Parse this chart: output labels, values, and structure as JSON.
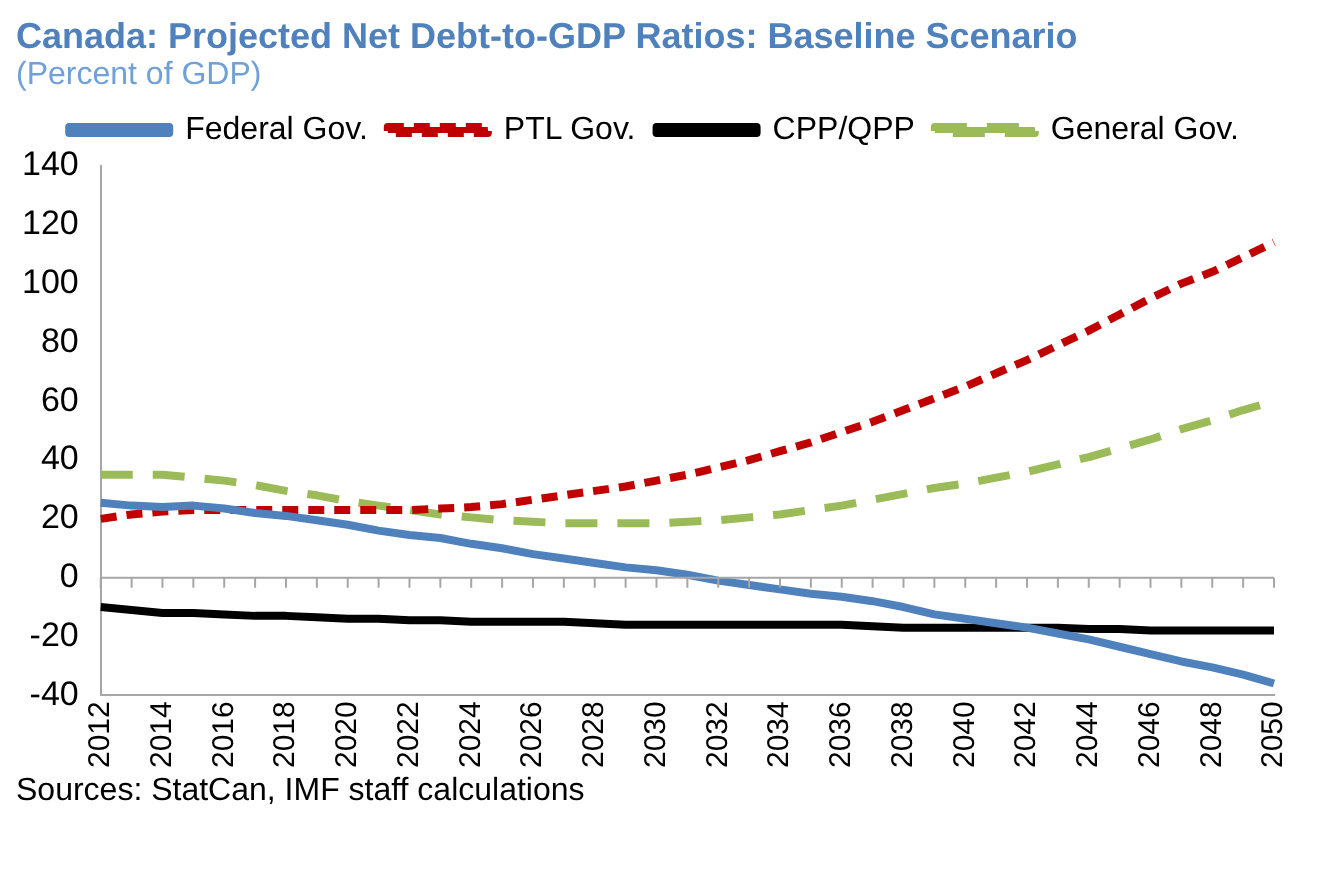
{
  "chart_data": {
    "type": "line",
    "title": "Canada: Projected Net Debt-to-GDP Ratios: Baseline Scenario",
    "subtitle": "(Percent of GDP)",
    "annotations": [
      "Sources: StatCan, IMF staff calculations"
    ],
    "categories": [
      "2012",
      null,
      "2014",
      null,
      "2016",
      null,
      "2018",
      null,
      "2020",
      null,
      "2022",
      null,
      "2024",
      null,
      "2026",
      null,
      "2028",
      null,
      "2030",
      null,
      "2032",
      null,
      "2034",
      null,
      "2036",
      null,
      "2038",
      null,
      "2040",
      null,
      "2042",
      null,
      "2044",
      null,
      "2046",
      null,
      "2048",
      null,
      "2050"
    ],
    "series": [
      {
        "name": "Federal Gov.",
        "color": "#4f81bd",
        "line_style": "solid",
        "values": [
          25.5,
          24.5,
          24,
          24.5,
          23.5,
          22,
          21,
          19.5,
          18,
          16,
          14.5,
          13.5,
          11.5,
          10,
          8,
          6.5,
          5,
          3.5,
          2.5,
          1,
          -1,
          -2.5,
          -4,
          -5.5,
          -6.5,
          -8,
          -10,
          -12.5,
          -14,
          -15.5,
          -17,
          -19,
          -21,
          -23.5,
          -26,
          -28.5,
          -30.5,
          -33,
          -36
        ]
      },
      {
        "name": "PTL Gov.",
        "color": "#c00000",
        "line_style": "dashed",
        "values": [
          20,
          21.5,
          22.5,
          23,
          23,
          23,
          23,
          23,
          23,
          23,
          23,
          23.5,
          24,
          25,
          26.5,
          28,
          29.5,
          31,
          33,
          35,
          37.5,
          40,
          43,
          46,
          49.5,
          53,
          57,
          61,
          65,
          69.5,
          74,
          79,
          84,
          89.5,
          95,
          100,
          104,
          109,
          114
        ]
      },
      {
        "name": "CPP/QPP",
        "color": "#000000",
        "line_style": "solid",
        "values": [
          -10,
          -11,
          -12,
          -12,
          -12.5,
          -13,
          -13,
          -13.5,
          -14,
          -14,
          -14.5,
          -14.5,
          -15,
          -15,
          -15,
          -15,
          -15.5,
          -16,
          -16,
          -16,
          -16,
          -16,
          -16,
          -16,
          -16,
          -16.5,
          -17,
          -17,
          -17,
          -17,
          -17,
          -17,
          -17.5,
          -17.5,
          -18,
          -18,
          -18,
          -18,
          -18
        ]
      },
      {
        "name": "General Gov.",
        "color": "#9bbb59",
        "line_style": "dashed",
        "values": [
          35,
          35,
          35,
          34,
          33,
          31.5,
          29.5,
          28,
          26,
          24.5,
          23,
          21.5,
          20.5,
          19.5,
          19,
          18.5,
          18.5,
          18.5,
          18.5,
          19,
          19.5,
          20.5,
          21.5,
          23,
          24.5,
          26.5,
          28.5,
          30.5,
          32,
          34,
          36,
          38.5,
          41,
          44,
          47,
          50.5,
          53.5,
          57,
          60
        ]
      }
    ],
    "ylim": [
      -40,
      140
    ],
    "yticks": [
      -40,
      -20,
      0,
      20,
      40,
      60,
      80,
      100,
      120,
      140
    ],
    "legend": "top",
    "marker": "none"
  }
}
